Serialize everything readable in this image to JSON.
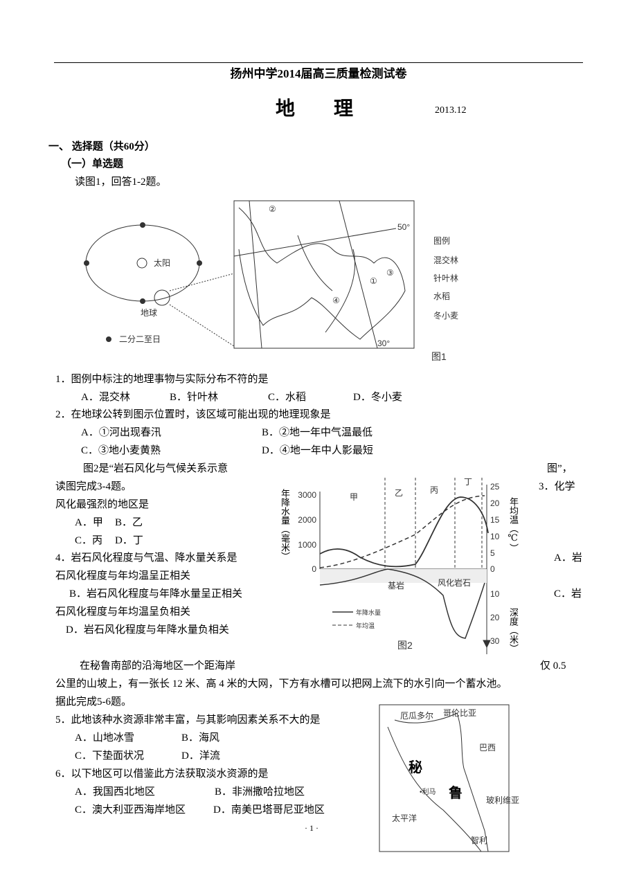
{
  "header": {
    "title": "扬州中学2014届高三质量检测试卷",
    "subject": "地　　理",
    "date": "2013.12"
  },
  "section": {
    "title": "一、 选择题（共60分）",
    "subtitle": "（一）单选题"
  },
  "group1": {
    "intro": "读图1，回答1-2题。"
  },
  "figure1": {
    "sun": "太阳",
    "earth": "地球",
    "legend_dot": "二分二至日",
    "lat_50": "50°",
    "lat_30": "30°",
    "legend_title": "图例",
    "legend": [
      "混交林",
      "针叶林",
      "水稻",
      "冬小麦"
    ],
    "markers": [
      "①",
      "②",
      "③",
      "④"
    ],
    "caption": "图1"
  },
  "questions": [
    {
      "stem": "1．图例中标注的地理事物与实际分布不符的是",
      "options": [
        "A．混交林",
        "B．针叶林",
        "C．水稻",
        "D．冬小麦"
      ]
    },
    {
      "stem": "2．在地球公转到图示位置时，该区域可能出现的地理现象是",
      "options": [
        "A．①河出现春汛",
        "B．②地一年中气温最低",
        "C．③地小麦黄熟",
        "D．④地一年中人影最短"
      ]
    },
    {
      "stem_a": "3．化学",
      "stem_b": "风化最强烈的地区是",
      "options": [
        "A．甲",
        "B．乙",
        "C．丙",
        "D．丁"
      ]
    },
    {
      "stem": "4．岩石风化程度与气温、降水量关系是",
      "options": [
        [
          "A．岩",
          "石风化程度与年均温呈正相关"
        ],
        [
          "B．岩石风化程度与年降水量呈正相关"
        ],
        [
          "C．岩",
          "石风化程度与年均温呈负相关"
        ],
        [
          "D．岩石风化程度与年降水量负相关"
        ]
      ]
    },
    {
      "stem": "5．此地该种水资源非常丰富，与其影响因素关系不大的是",
      "options": [
        "A．山地冰雪",
        "B．海风",
        "C．下垫面状况",
        "D．洋流"
      ]
    },
    {
      "stem": "6．以下地区可以借鉴此方法获取淡水资源的是",
      "options": [
        "A．我国西北地区",
        "B．非洲撒哈拉地区",
        "C．澳大利亚西海岸地区",
        "D．南美巴塔哥尼亚地区"
      ]
    }
  ],
  "group2": {
    "intro_a": "图2是“岩石风化与气候关系示意",
    "intro_b": "图”，",
    "intro_c": "读图完成3-4题。"
  },
  "figure2": {
    "zones": [
      "甲",
      "乙",
      "丙",
      "丁"
    ],
    "left_label": "年降水量（毫米）",
    "left_ticks": [
      "3000",
      "2000",
      "1000",
      "0"
    ],
    "right_label": "年均温（℃）",
    "right_ticks": [
      "25",
      "20",
      "15",
      "10",
      "5",
      "0"
    ],
    "depth_label": "深度（米）",
    "depth_ticks": [
      "10",
      "20",
      "30"
    ],
    "bedrock": "基岩",
    "weathered": "风化岩石",
    "legend": [
      "年降水量",
      "年均温"
    ],
    "caption": "图2"
  },
  "group3": {
    "intro_a": "在秘鲁南部的沿海地区一个距海岸",
    "intro_b": "仅 0.5",
    "intro_c": "公里的山坡上，有一张长 12 米、高 4 米的大网，下方有水槽可以把网上流下的水引向一个蓄水池。",
    "intro_d": "据此完成5-6题。"
  },
  "figure3": {
    "ecuador": "厄瓜多尔",
    "colombia": "哥伦比亚",
    "brazil": "巴西",
    "peru_a": "秘",
    "peru_b": "鲁",
    "lima": "•利马",
    "bolivia": "玻利维亚",
    "pacific": "太平洋",
    "chile": "智利"
  },
  "footer": {
    "page": "· 1 ·"
  }
}
